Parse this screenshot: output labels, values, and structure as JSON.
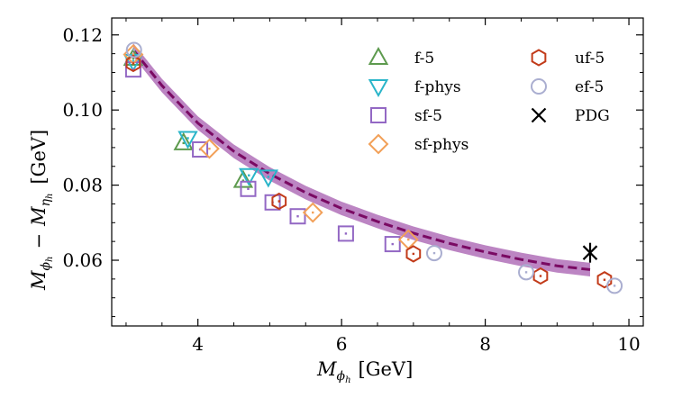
{
  "chart_data": {
    "type": "scatter",
    "xlabel_main": "M",
    "xlabel_sub": "ϕ",
    "xlabel_subsub": "h",
    "xlabel_unit": "[GeV]",
    "ylabel_m1": "M",
    "ylabel_m1_sub": "ϕ",
    "ylabel_m1_subsub": "h",
    "ylabel_op": "−",
    "ylabel_m2": "M",
    "ylabel_m2_sub": "η",
    "ylabel_m2_subsub": "h",
    "ylabel_unit": "[GeV]",
    "xlim": [
      2.8,
      10.2
    ],
    "ylim": [
      0.0425,
      0.1245
    ],
    "x_ticks": [
      4,
      6,
      8,
      10
    ],
    "x_tick_labels": [
      "4",
      "6",
      "8",
      "10"
    ],
    "y_ticks": [
      0.06,
      0.08,
      0.1,
      0.12
    ],
    "y_tick_labels": [
      "0.06",
      "0.08",
      "0.10",
      "0.12"
    ],
    "legend_position": "top-right",
    "series": [
      {
        "name": "f-5",
        "marker": "triangle-up",
        "color": "#5d9a4e",
        "points": [
          [
            3.1,
            0.1137
          ],
          [
            3.8,
            0.0912
          ],
          [
            4.63,
            0.0812
          ]
        ]
      },
      {
        "name": "f-phys",
        "marker": "triangle-down",
        "color": "#2ab5c9",
        "points": [
          [
            3.1,
            0.113
          ],
          [
            3.86,
            0.0925
          ],
          [
            4.71,
            0.0826
          ],
          [
            4.98,
            0.0822
          ]
        ]
      },
      {
        "name": "sf-5",
        "marker": "square",
        "color": "#9368c4",
        "points": [
          [
            3.1,
            0.1108
          ],
          [
            4.03,
            0.0895
          ],
          [
            4.7,
            0.079
          ],
          [
            5.04,
            0.0754
          ],
          [
            5.39,
            0.0717
          ],
          [
            6.06,
            0.0671
          ],
          [
            6.71,
            0.0643
          ]
        ]
      },
      {
        "name": "sf-phys",
        "marker": "diamond",
        "color": "#f2a058",
        "points": [
          [
            3.1,
            0.1148
          ],
          [
            4.16,
            0.0897
          ],
          [
            5.6,
            0.0727
          ],
          [
            6.93,
            0.0655
          ]
        ]
      },
      {
        "name": "uf-5",
        "marker": "hexagon",
        "color": "#c23b1a",
        "points": [
          [
            3.1,
            0.1124
          ],
          [
            5.13,
            0.0757
          ],
          [
            7.0,
            0.0617
          ],
          [
            8.77,
            0.0558
          ],
          [
            9.66,
            0.0548
          ]
        ]
      },
      {
        "name": "ef-5",
        "marker": "circle",
        "color": "#aaaed0",
        "points": [
          [
            3.11,
            0.116
          ],
          [
            7.29,
            0.0619
          ],
          [
            8.57,
            0.0568
          ],
          [
            9.8,
            0.0532
          ]
        ]
      },
      {
        "name": "PDG",
        "marker": "x",
        "color": "#000000",
        "points": [
          [
            9.46,
            0.062
          ]
        ]
      }
    ],
    "fit_curve": {
      "x": [
        3.1,
        3.5,
        4.0,
        4.5,
        5.0,
        5.5,
        6.0,
        6.5,
        7.0,
        7.5,
        8.0,
        8.5,
        9.0,
        9.46
      ],
      "y": [
        0.116,
        0.1065,
        0.0965,
        0.089,
        0.083,
        0.078,
        0.0738,
        0.0703,
        0.0672,
        0.0645,
        0.0622,
        0.0602,
        0.0585,
        0.0575
      ],
      "band_halfwidth": 0.0018,
      "line_color": "#7a0a63",
      "band_color": "#b070b8"
    }
  }
}
